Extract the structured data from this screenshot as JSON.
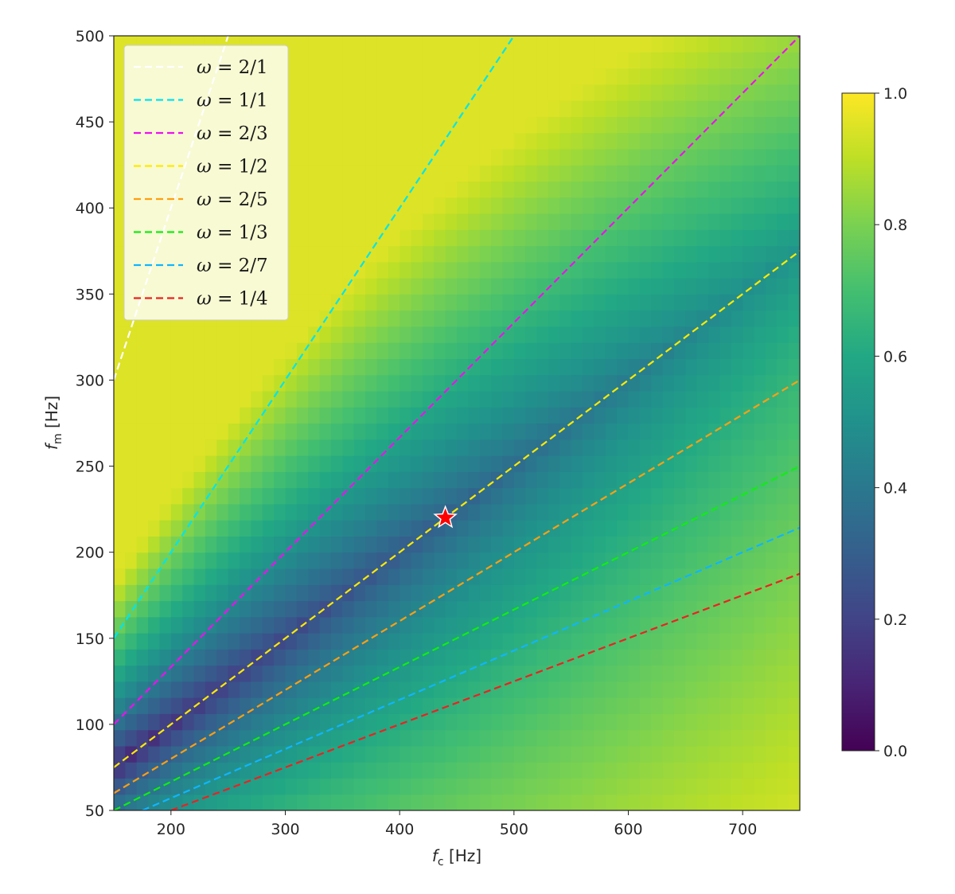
{
  "chart_data": {
    "type": "heatmap",
    "xlabel": {
      "symbol": "f",
      "sub": "c",
      "unit": "[Hz]"
    },
    "ylabel": {
      "symbol": "f",
      "sub": "m",
      "unit": "[Hz]"
    },
    "xlim": [
      150,
      750
    ],
    "ylim": [
      50,
      500
    ],
    "x_ticks": [
      200,
      300,
      400,
      500,
      600,
      700
    ],
    "y_ticks": [
      50,
      100,
      150,
      200,
      250,
      300,
      350,
      400,
      450,
      500
    ],
    "colorbar": {
      "colormap": "viridis",
      "range": [
        0.0,
        1.0
      ],
      "ticks": [
        "0.0",
        "0.2",
        "0.4",
        "0.6",
        "0.8",
        "1.0"
      ]
    },
    "series": [
      {
        "name": "ω = 2/1",
        "label_text": "= 2/1",
        "ratio": 2.0,
        "color": "#ffffff"
      },
      {
        "name": "ω = 1/1",
        "label_text": "= 1/1",
        "ratio": 1.0,
        "color": "#00e5ee"
      },
      {
        "name": "ω = 2/3",
        "label_text": "= 2/3",
        "ratio": 0.6667,
        "color": "#ee10ee"
      },
      {
        "name": "ω = 1/2",
        "label_text": "= 1/2",
        "ratio": 0.5,
        "color": "#ffea00"
      },
      {
        "name": "ω = 2/5",
        "label_text": "= 2/5",
        "ratio": 0.4,
        "color": "#ff9f10"
      },
      {
        "name": "ω = 1/3",
        "label_text": "= 1/3",
        "ratio": 0.3333,
        "color": "#10ee10"
      },
      {
        "name": "ω = 2/7",
        "label_text": "= 2/7",
        "ratio": 0.2857,
        "color": "#10b5ff"
      },
      {
        "name": "ω = 1/4",
        "label_text": "= 1/4",
        "ratio": 0.25,
        "color": "#ee2020"
      }
    ],
    "marker": {
      "type": "star",
      "x": 440,
      "y": 220,
      "color": "#ff0000"
    },
    "legend_position": "upper-left",
    "grid": false
  }
}
